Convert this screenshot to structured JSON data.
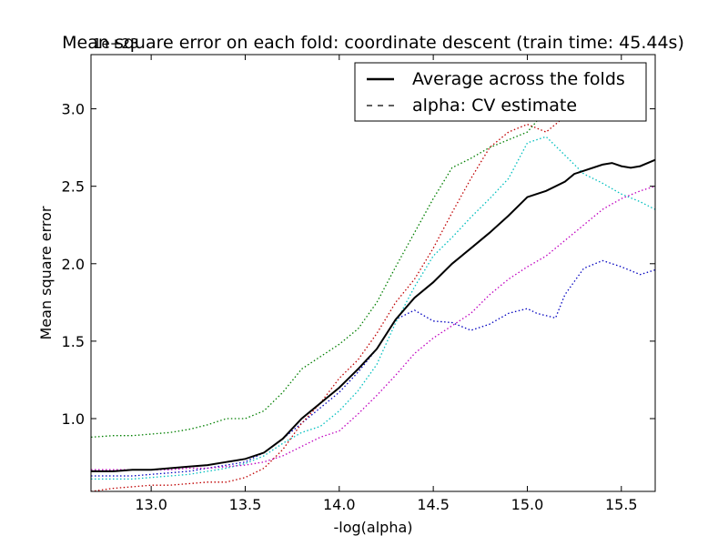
{
  "chart_data": {
    "type": "line",
    "title": "Mean square error on each fold: coordinate descent (train time: 45.44s)",
    "xlabel": "-log(alpha)",
    "ylabel": "Mean square error",
    "offset_label": "1e+23",
    "xlim": [
      12.68,
      15.68
    ],
    "ylim": [
      0.53,
      3.35
    ],
    "xticks": [
      13.0,
      13.5,
      14.0,
      14.5,
      15.0,
      15.5
    ],
    "xtick_labels": [
      "13.0",
      "13.5",
      "14.0",
      "14.5",
      "15.0",
      "15.5"
    ],
    "yticks": [
      1.0,
      1.5,
      2.0,
      2.5,
      3.0
    ],
    "ytick_labels": [
      "1.0",
      "1.5",
      "2.0",
      "2.5",
      "3.0"
    ],
    "grid": false,
    "legend_position": "top-right",
    "legend": [
      {
        "label": "Average across the folds",
        "style": "solid",
        "color": "#000000"
      },
      {
        "label": "alpha: CV estimate",
        "style": "dashed",
        "color": "#000000"
      }
    ],
    "series": [
      {
        "color": "#0000bf",
        "style": "dotted",
        "x": [
          12.68,
          12.8,
          12.9,
          13.0,
          13.1,
          13.2,
          13.3,
          13.4,
          13.5,
          13.6,
          13.7,
          13.8,
          13.9,
          14.0,
          14.1,
          14.2,
          14.3,
          14.4,
          14.5,
          14.6,
          14.7,
          14.8,
          14.9,
          15.0,
          15.05,
          15.15,
          15.2,
          15.3,
          15.4,
          15.5,
          15.6,
          15.68
        ],
        "y": [
          0.63,
          0.63,
          0.63,
          0.64,
          0.65,
          0.66,
          0.68,
          0.7,
          0.72,
          0.78,
          0.87,
          0.97,
          1.07,
          1.17,
          1.3,
          1.45,
          1.64,
          1.7,
          1.63,
          1.62,
          1.57,
          1.61,
          1.68,
          1.71,
          1.68,
          1.65,
          1.8,
          1.97,
          2.02,
          1.98,
          1.93,
          1.96
        ]
      },
      {
        "color": "#00bfbf",
        "style": "dotted",
        "x": [
          12.68,
          12.8,
          12.9,
          13.0,
          13.1,
          13.2,
          13.3,
          13.4,
          13.5,
          13.6,
          13.7,
          13.8,
          13.9,
          14.0,
          14.1,
          14.2,
          14.3,
          14.4,
          14.5,
          14.6,
          14.7,
          14.8,
          14.9,
          15.0,
          15.05,
          15.1,
          15.2,
          15.3,
          15.4,
          15.5,
          15.6,
          15.68
        ],
        "y": [
          0.61,
          0.61,
          0.61,
          0.62,
          0.63,
          0.64,
          0.66,
          0.68,
          0.71,
          0.76,
          0.84,
          0.91,
          0.95,
          1.05,
          1.18,
          1.35,
          1.62,
          1.85,
          2.05,
          2.17,
          2.3,
          2.42,
          2.55,
          2.78,
          2.8,
          2.82,
          2.7,
          2.58,
          2.52,
          2.45,
          2.4,
          2.35
        ]
      },
      {
        "color": "#bf0000",
        "style": "dotted",
        "x": [
          12.68,
          12.8,
          12.9,
          13.0,
          13.1,
          13.2,
          13.3,
          13.4,
          13.5,
          13.6,
          13.7,
          13.8,
          13.9,
          14.0,
          14.1,
          14.2,
          14.3,
          14.4,
          14.5,
          14.6,
          14.7,
          14.8,
          14.9,
          15.0,
          15.1,
          15.2
        ],
        "y": [
          0.53,
          0.55,
          0.56,
          0.57,
          0.57,
          0.58,
          0.59,
          0.59,
          0.62,
          0.68,
          0.8,
          0.97,
          1.1,
          1.26,
          1.38,
          1.55,
          1.75,
          1.9,
          2.1,
          2.33,
          2.55,
          2.75,
          2.85,
          2.9,
          2.85,
          2.95
        ]
      },
      {
        "color": "#007f00",
        "style": "dotted",
        "x": [
          12.68,
          12.8,
          12.9,
          13.0,
          13.1,
          13.2,
          13.3,
          13.4,
          13.5,
          13.6,
          13.7,
          13.8,
          13.9,
          14.0,
          14.1,
          14.2,
          14.3,
          14.4,
          14.5,
          14.6,
          14.7,
          14.8,
          14.9,
          15.0,
          15.05
        ],
        "y": [
          0.88,
          0.89,
          0.89,
          0.9,
          0.91,
          0.93,
          0.96,
          1.0,
          1.0,
          1.05,
          1.17,
          1.32,
          1.4,
          1.48,
          1.58,
          1.75,
          1.98,
          2.2,
          2.42,
          2.62,
          2.68,
          2.75,
          2.8,
          2.85,
          2.92
        ]
      },
      {
        "color": "#bf00bf",
        "style": "dotted",
        "x": [
          12.68,
          12.8,
          12.9,
          13.0,
          13.1,
          13.2,
          13.3,
          13.4,
          13.5,
          13.6,
          13.7,
          13.8,
          13.9,
          14.0,
          14.1,
          14.2,
          14.3,
          14.4,
          14.5,
          14.6,
          14.7,
          14.8,
          14.9,
          15.0,
          15.1,
          15.2,
          15.3,
          15.4,
          15.5,
          15.6,
          15.68
        ],
        "y": [
          0.67,
          0.67,
          0.67,
          0.67,
          0.67,
          0.68,
          0.68,
          0.69,
          0.7,
          0.72,
          0.76,
          0.82,
          0.88,
          0.92,
          1.03,
          1.15,
          1.28,
          1.42,
          1.52,
          1.6,
          1.68,
          1.8,
          1.9,
          1.98,
          2.05,
          2.15,
          2.25,
          2.35,
          2.42,
          2.47,
          2.5
        ]
      },
      {
        "color": "#000000",
        "style": "solid",
        "width": 2,
        "x": [
          12.68,
          12.8,
          12.9,
          13.0,
          13.1,
          13.2,
          13.3,
          13.4,
          13.5,
          13.6,
          13.7,
          13.8,
          13.9,
          14.0,
          14.1,
          14.2,
          14.3,
          14.4,
          14.5,
          14.6,
          14.7,
          14.8,
          14.9,
          15.0,
          15.05,
          15.1,
          15.2,
          15.25,
          15.3,
          15.4,
          15.45,
          15.5,
          15.55,
          15.6,
          15.68
        ],
        "y": [
          0.66,
          0.66,
          0.67,
          0.67,
          0.68,
          0.69,
          0.7,
          0.72,
          0.74,
          0.78,
          0.87,
          1.0,
          1.1,
          1.2,
          1.32,
          1.45,
          1.64,
          1.78,
          1.88,
          2.0,
          2.1,
          2.2,
          2.31,
          2.43,
          2.45,
          2.47,
          2.53,
          2.58,
          2.6,
          2.64,
          2.65,
          2.63,
          2.62,
          2.63,
          2.67
        ]
      }
    ]
  }
}
